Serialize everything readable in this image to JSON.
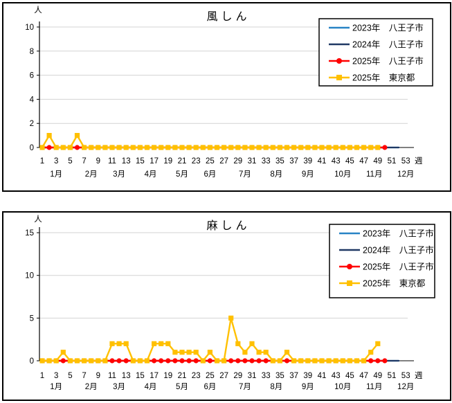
{
  "app": {
    "background": "#ffffff",
    "panel_border_color": "#000000",
    "grid_color": "#d3d3d3",
    "axis_color": "#000000"
  },
  "legend": {
    "entries": [
      {
        "label": "2023年　八王子市",
        "year": "2023年",
        "region": "八王子市",
        "color": "#2783C5",
        "marker": "none"
      },
      {
        "label": "2024年　八王子市",
        "year": "2024年",
        "region": "八王子市",
        "color": "#1F3864",
        "marker": "none"
      },
      {
        "label": "2025年　八王子市",
        "year": "2025年",
        "region": "八王子市",
        "color": "#FF0000",
        "marker": "circle"
      },
      {
        "label": "2025年　東京都",
        "year": "2025年",
        "region": "東京都",
        "color": "#FFC000",
        "marker": "square"
      }
    ]
  },
  "chart_data": [
    {
      "type": "line",
      "title": "風しん",
      "ylabel": "人",
      "xlabel": "週",
      "ylim": [
        0,
        10
      ],
      "y_ticks": [
        0,
        2,
        4,
        6,
        8,
        10
      ],
      "x_tick_weeks": [
        1,
        3,
        5,
        7,
        9,
        11,
        13,
        15,
        17,
        19,
        21,
        23,
        25,
        27,
        29,
        31,
        33,
        35,
        37,
        39,
        41,
        43,
        45,
        47,
        49,
        51,
        53
      ],
      "month_labels": [
        {
          "label": "1月",
          "week": 3
        },
        {
          "label": "2月",
          "week": 8
        },
        {
          "label": "3月",
          "week": 12
        },
        {
          "label": "4月",
          "week": 16.5
        },
        {
          "label": "5月",
          "week": 21
        },
        {
          "label": "6月",
          "week": 25
        },
        {
          "label": "7月",
          "week": 30
        },
        {
          "label": "8月",
          "week": 34.5
        },
        {
          "label": "9月",
          "week": 39
        },
        {
          "label": "10月",
          "week": 44
        },
        {
          "label": "11月",
          "week": 48.5
        },
        {
          "label": "12月",
          "week": 53
        }
      ],
      "grid": "horizontal",
      "legend_position": "top-right",
      "series": [
        {
          "name": "2023年　八王子市",
          "color": "#2783C5",
          "marker": "none",
          "line_width": 2.2,
          "start_week": 1,
          "values": [
            0,
            0,
            0,
            0,
            0,
            0,
            0,
            0,
            0,
            0,
            0,
            0,
            0,
            0,
            0,
            0,
            0,
            0,
            0,
            0,
            0,
            0,
            0,
            0,
            0,
            0,
            0,
            0,
            0,
            0,
            0,
            0,
            0,
            0,
            0,
            0,
            0,
            0,
            0,
            0,
            0,
            0,
            0,
            0,
            0,
            0,
            0,
            0,
            0,
            0,
            0,
            0
          ]
        },
        {
          "name": "2024年　八王子市",
          "color": "#1F3864",
          "marker": "none",
          "line_width": 2.2,
          "start_week": 1,
          "values": [
            0,
            0,
            0,
            0,
            0,
            0,
            0,
            0,
            0,
            0,
            0,
            0,
            0,
            0,
            0,
            0,
            0,
            0,
            0,
            0,
            0,
            0,
            0,
            0,
            0,
            0,
            0,
            0,
            0,
            0,
            0,
            0,
            0,
            0,
            0,
            0,
            0,
            0,
            0,
            0,
            0,
            0,
            0,
            0,
            0,
            0,
            0,
            0,
            0,
            0,
            0,
            0
          ]
        },
        {
          "name": "2025年　八王子市",
          "color": "#FF0000",
          "marker": "circle",
          "line_width": 2.4,
          "start_week": 1,
          "values": [
            0,
            0,
            0,
            0,
            0,
            0,
            0,
            0,
            0,
            0,
            0,
            0,
            0,
            0,
            0,
            0,
            0,
            0,
            0,
            0,
            0,
            0,
            0,
            0,
            0,
            0,
            0,
            0,
            0,
            0,
            0,
            0,
            0,
            0,
            0,
            0,
            0,
            0,
            0,
            0,
            0,
            0,
            0,
            0,
            0,
            0,
            0,
            0,
            0,
            0
          ]
        },
        {
          "name": "2025年　東京都",
          "color": "#FFC000",
          "marker": "square",
          "line_width": 2.4,
          "start_week": 1,
          "values": [
            0,
            1,
            0,
            0,
            0,
            1,
            0,
            0,
            0,
            0,
            0,
            0,
            0,
            0,
            0,
            0,
            0,
            0,
            0,
            0,
            0,
            0,
            0,
            0,
            0,
            0,
            0,
            0,
            0,
            0,
            0,
            0,
            0,
            0,
            0,
            0,
            0,
            0,
            0,
            0,
            0,
            0,
            0,
            0,
            0,
            0,
            0,
            0,
            0
          ]
        }
      ]
    },
    {
      "type": "line",
      "title": "麻しん",
      "ylabel": "人",
      "xlabel": "週",
      "ylim": [
        0,
        15
      ],
      "y_ticks": [
        0,
        5,
        10,
        15
      ],
      "x_tick_weeks": [
        1,
        3,
        5,
        7,
        9,
        11,
        13,
        15,
        17,
        19,
        21,
        23,
        25,
        27,
        29,
        31,
        33,
        35,
        37,
        39,
        41,
        43,
        45,
        47,
        49,
        51,
        53
      ],
      "month_labels": [
        {
          "label": "1月",
          "week": 3
        },
        {
          "label": "2月",
          "week": 8
        },
        {
          "label": "3月",
          "week": 12
        },
        {
          "label": "4月",
          "week": 16.5
        },
        {
          "label": "5月",
          "week": 21
        },
        {
          "label": "6月",
          "week": 25
        },
        {
          "label": "7月",
          "week": 30
        },
        {
          "label": "8月",
          "week": 34.5
        },
        {
          "label": "9月",
          "week": 39
        },
        {
          "label": "10月",
          "week": 44
        },
        {
          "label": "11月",
          "week": 48.5
        },
        {
          "label": "12月",
          "week": 53
        }
      ],
      "grid": "horizontal",
      "legend_position": "top-right",
      "series": [
        {
          "name": "2023年　八王子市",
          "color": "#2783C5",
          "marker": "none",
          "line_width": 2.2,
          "start_week": 1,
          "values": [
            0,
            0,
            0,
            0,
            0,
            0,
            0,
            0,
            0,
            0,
            0,
            0,
            0,
            0,
            0,
            0,
            0,
            0,
            0,
            0,
            0,
            0,
            0,
            0,
            0,
            0,
            0,
            0,
            0,
            0,
            0,
            0,
            0,
            0,
            0,
            0,
            0,
            0,
            0,
            0,
            0,
            0,
            0,
            0,
            0,
            0,
            0,
            0,
            0,
            0,
            0,
            0
          ]
        },
        {
          "name": "2024年　八王子市",
          "color": "#1F3864",
          "marker": "none",
          "line_width": 2.2,
          "start_week": 1,
          "values": [
            0,
            0,
            0,
            0,
            0,
            0,
            0,
            0,
            0,
            0,
            0,
            0,
            0,
            0,
            0,
            0,
            0,
            0,
            0,
            0,
            0,
            0,
            0,
            0,
            0,
            0,
            0,
            0,
            0,
            0,
            0,
            0,
            0,
            0,
            0,
            0,
            0,
            0,
            0,
            0,
            0,
            0,
            0,
            0,
            0,
            0,
            0,
            0,
            0,
            0,
            0,
            0
          ]
        },
        {
          "name": "2025年　八王子市",
          "color": "#FF0000",
          "marker": "circle",
          "line_width": 2.4,
          "start_week": 1,
          "values": [
            0,
            0,
            0,
            0,
            0,
            0,
            0,
            0,
            0,
            0,
            0,
            0,
            0,
            0,
            0,
            0,
            0,
            0,
            0,
            0,
            0,
            0,
            0,
            0,
            0,
            0,
            0,
            0,
            0,
            0,
            0,
            0,
            0,
            0,
            0,
            0,
            0,
            0,
            0,
            0,
            0,
            0,
            0,
            0,
            0,
            0,
            0,
            0,
            0,
            0
          ]
        },
        {
          "name": "2025年　東京都",
          "color": "#FFC000",
          "marker": "square",
          "line_width": 2.4,
          "start_week": 1,
          "values": [
            0,
            0,
            0,
            1,
            0,
            0,
            0,
            0,
            0,
            0,
            2,
            2,
            2,
            0,
            0,
            0,
            2,
            2,
            2,
            1,
            1,
            1,
            1,
            0,
            1,
            0,
            0,
            5,
            2,
            1,
            2,
            1,
            1,
            0,
            0,
            1,
            0,
            0,
            0,
            0,
            0,
            0,
            0,
            0,
            0,
            0,
            0,
            1,
            2
          ]
        }
      ]
    }
  ]
}
